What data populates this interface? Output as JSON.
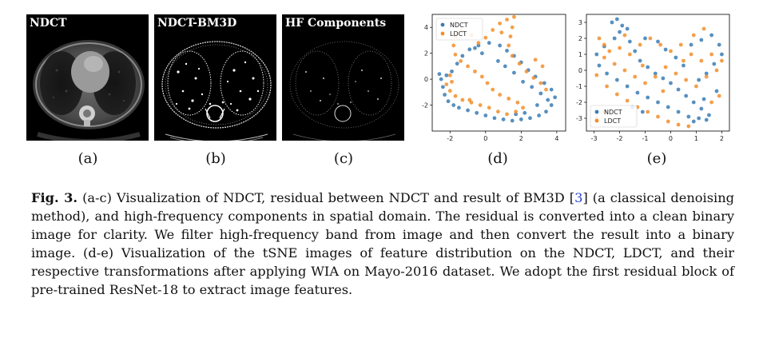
{
  "panels": [
    {
      "title": "NDCT",
      "label": "(a)"
    },
    {
      "title": "NDCT-BM3D",
      "label": "(b)"
    },
    {
      "title": "HF Components",
      "label": "(c)"
    }
  ],
  "plot_labels": [
    "(d)",
    "(e)"
  ],
  "colors": {
    "ndct": "#3a7db5",
    "ldct": "#f28e2b"
  },
  "chart_data": [
    {
      "type": "scatter",
      "title": "",
      "legend": [
        "NDCT",
        "LDCT"
      ],
      "legend_position": "top-left",
      "xlim": [
        -3,
        4.5
      ],
      "ylim": [
        -4,
        5
      ],
      "x_ticks": [
        -2,
        0,
        2,
        4
      ],
      "y_ticks": [
        -2,
        0,
        2,
        4
      ],
      "series": [
        {
          "name": "NDCT",
          "points": [
            [
              -2.6,
              0.4
            ],
            [
              -2.5,
              0.0
            ],
            [
              -2.4,
              -0.6
            ],
            [
              -2.3,
              -1.2
            ],
            [
              -2.1,
              -1.7
            ],
            [
              -1.8,
              -2.0
            ],
            [
              -1.5,
              -2.2
            ],
            [
              -1.0,
              -2.4
            ],
            [
              -0.5,
              -2.6
            ],
            [
              0.0,
              -2.8
            ],
            [
              0.5,
              -3.0
            ],
            [
              1.0,
              -3.1
            ],
            [
              1.5,
              -3.2
            ],
            [
              2.0,
              -3.1
            ],
            [
              2.5,
              -3.0
            ],
            [
              3.0,
              -2.8
            ],
            [
              3.4,
              -2.5
            ],
            [
              3.7,
              -2.0
            ],
            [
              3.9,
              -1.4
            ],
            [
              3.7,
              -0.8
            ],
            [
              3.3,
              -0.3
            ],
            [
              2.8,
              0.2
            ],
            [
              2.4,
              0.7
            ],
            [
              2.0,
              1.3
            ],
            [
              1.6,
              1.8
            ],
            [
              1.2,
              2.2
            ],
            [
              0.8,
              2.6
            ],
            [
              0.2,
              2.8
            ],
            [
              -0.4,
              2.6
            ],
            [
              -0.9,
              2.3
            ],
            [
              -1.3,
              1.8
            ],
            [
              -1.6,
              1.2
            ],
            [
              -1.9,
              0.6
            ],
            [
              -2.2,
              0.3
            ],
            [
              2.1,
              -0.2
            ],
            [
              2.6,
              -0.6
            ],
            [
              3.1,
              -1.1
            ],
            [
              3.5,
              -1.6
            ],
            [
              1.6,
              0.5
            ],
            [
              1.1,
              1.0
            ],
            [
              0.7,
              1.4
            ],
            [
              -0.2,
              2.0
            ],
            [
              -0.6,
              2.4
            ],
            [
              2.9,
              -2.0
            ],
            [
              2.2,
              -2.6
            ],
            [
              1.7,
              -2.7
            ]
          ]
        },
        {
          "name": "LDCT",
          "points": [
            [
              -2.2,
              -0.4
            ],
            [
              -2.0,
              -0.9
            ],
            [
              -1.7,
              -1.3
            ],
            [
              -1.3,
              -1.6
            ],
            [
              -0.8,
              -1.8
            ],
            [
              -0.3,
              -2.0
            ],
            [
              0.2,
              -2.2
            ],
            [
              0.7,
              -2.5
            ],
            [
              1.2,
              -2.7
            ],
            [
              1.7,
              -2.5
            ],
            [
              2.1,
              -2.2
            ],
            [
              1.8,
              -1.8
            ],
            [
              1.3,
              -1.5
            ],
            [
              0.8,
              -1.2
            ],
            [
              0.4,
              -0.8
            ],
            [
              0.1,
              -0.3
            ],
            [
              -0.2,
              0.2
            ],
            [
              -0.6,
              0.6
            ],
            [
              -1.0,
              1.0
            ],
            [
              -1.4,
              1.4
            ],
            [
              -1.7,
              1.9
            ],
            [
              -1.8,
              2.6
            ],
            [
              -1.7,
              3.3
            ],
            [
              -1.3,
              3.7
            ],
            [
              -0.8,
              3.4
            ],
            [
              -0.4,
              2.8
            ],
            [
              0.0,
              3.2
            ],
            [
              0.4,
              3.8
            ],
            [
              0.8,
              4.3
            ],
            [
              1.2,
              4.6
            ],
            [
              1.5,
              4.0
            ],
            [
              1.4,
              3.3
            ],
            [
              1.3,
              2.6
            ],
            [
              1.5,
              1.8
            ],
            [
              1.9,
              1.2
            ],
            [
              2.3,
              0.6
            ],
            [
              2.7,
              0.1
            ],
            [
              3.1,
              -0.3
            ],
            [
              3.4,
              -0.8
            ],
            [
              3.2,
              1.0
            ],
            [
              2.8,
              1.5
            ],
            [
              1.6,
              4.8
            ],
            [
              0.9,
              3.6
            ],
            [
              -1.9,
              -0.2
            ],
            [
              -2.0,
              0.3
            ],
            [
              -0.9,
              -1.6
            ]
          ]
        }
      ]
    },
    {
      "type": "scatter",
      "title": "",
      "legend": [
        "NDCT",
        "LDCT"
      ],
      "legend_position": "bottom-left",
      "xlim": [
        -3.3,
        2.3
      ],
      "ylim": [
        -3.8,
        3.5
      ],
      "x_ticks": [
        -3,
        -2,
        -1,
        0,
        1,
        2
      ],
      "y_ticks": [
        -3,
        -2,
        -1,
        0,
        1,
        2,
        3
      ],
      "series": [
        {
          "name": "NDCT",
          "points": [
            [
              -2.3,
              3.0
            ],
            [
              -2.1,
              3.2
            ],
            [
              -1.9,
              2.8
            ],
            [
              -2.0,
              2.4
            ],
            [
              -2.2,
              2.0
            ],
            [
              -1.7,
              2.6
            ],
            [
              -1.6,
              1.8
            ],
            [
              -1.4,
              1.2
            ],
            [
              -1.2,
              0.6
            ],
            [
              -0.9,
              0.2
            ],
            [
              -0.6,
              -0.2
            ],
            [
              -0.3,
              -0.5
            ],
            [
              0.0,
              -0.8
            ],
            [
              0.3,
              -1.2
            ],
            [
              0.6,
              -1.6
            ],
            [
              0.9,
              -2.0
            ],
            [
              1.2,
              -2.4
            ],
            [
              1.5,
              -2.8
            ],
            [
              1.1,
              -3.0
            ],
            [
              0.7,
              -2.9
            ],
            [
              0.3,
              -2.6
            ],
            [
              -0.1,
              -2.3
            ],
            [
              -0.5,
              -2.0
            ],
            [
              -0.9,
              -1.7
            ],
            [
              -1.3,
              -1.4
            ],
            [
              -1.7,
              -1.0
            ],
            [
              -2.1,
              -0.6
            ],
            [
              -2.5,
              -0.2
            ],
            [
              -2.8,
              0.3
            ],
            [
              -2.9,
              1.0
            ],
            [
              -2.6,
              1.5
            ],
            [
              0.8,
              1.6
            ],
            [
              1.2,
              1.9
            ],
            [
              1.6,
              2.2
            ],
            [
              1.9,
              1.6
            ],
            [
              2.0,
              1.0
            ],
            [
              1.7,
              0.4
            ],
            [
              1.4,
              -0.2
            ],
            [
              1.1,
              -0.6
            ],
            [
              0.5,
              0.3
            ],
            [
              0.2,
              0.8
            ],
            [
              -0.2,
              1.3
            ],
            [
              -0.5,
              1.8
            ],
            [
              -1.0,
              2.0
            ],
            [
              1.8,
              -1.3
            ],
            [
              1.3,
              -1.8
            ],
            [
              -1.5,
              -2.3
            ],
            [
              -1.1,
              -2.6
            ],
            [
              0.9,
              -3.2
            ],
            [
              1.4,
              -3.1
            ]
          ]
        },
        {
          "name": "LDCT",
          "points": [
            [
              -2.8,
              2.0
            ],
            [
              -2.6,
              1.6
            ],
            [
              -2.4,
              1.2
            ],
            [
              -2.0,
              1.4
            ],
            [
              -1.6,
              1.0
            ],
            [
              -1.2,
              1.6
            ],
            [
              -0.8,
              2.0
            ],
            [
              -0.4,
              1.6
            ],
            [
              0.0,
              1.2
            ],
            [
              0.4,
              1.6
            ],
            [
              0.8,
              1.0
            ],
            [
              1.2,
              0.6
            ],
            [
              1.6,
              1.0
            ],
            [
              2.0,
              0.6
            ],
            [
              1.8,
              0.0
            ],
            [
              1.4,
              -0.4
            ],
            [
              1.0,
              -1.0
            ],
            [
              0.6,
              -0.6
            ],
            [
              0.2,
              -0.2
            ],
            [
              -0.2,
              0.2
            ],
            [
              -0.6,
              -0.4
            ],
            [
              -1.0,
              -0.8
            ],
            [
              -1.4,
              -0.4
            ],
            [
              -1.8,
              0.0
            ],
            [
              -2.2,
              0.4
            ],
            [
              -2.6,
              0.8
            ],
            [
              -2.9,
              -0.3
            ],
            [
              -2.5,
              -1.0
            ],
            [
              -2.1,
              -1.5
            ],
            [
              -1.7,
              -1.9
            ],
            [
              -1.3,
              -2.3
            ],
            [
              -0.9,
              -2.6
            ],
            [
              -0.5,
              -2.9
            ],
            [
              -0.1,
              -3.2
            ],
            [
              0.3,
              -3.4
            ],
            [
              0.7,
              -3.5
            ],
            [
              -2.6,
              -2.6
            ],
            [
              -2.9,
              -3.0
            ],
            [
              1.6,
              -2.0
            ],
            [
              1.9,
              -1.6
            ],
            [
              0.9,
              2.2
            ],
            [
              1.3,
              2.6
            ],
            [
              -1.8,
              2.2
            ],
            [
              -0.3,
              -1.3
            ],
            [
              0.5,
              0.6
            ],
            [
              -1.1,
              0.3
            ]
          ]
        }
      ]
    }
  ],
  "caption": {
    "fig_label": "Fig. 3.",
    "text_1": " (a-c) Visualization of NDCT, residual between NDCT and result of BM3D [",
    "cite": "3",
    "text_2": "] (a classical denoising method), and high-frequency components in spatial domain. The residual is converted into a clean binary image for clarity. We filter high-frequency band from image and then convert the result into a binary image. (d-e) Visualization of the tSNE images of feature distribution on the NDCT, LDCT, and their respective transformations after applying WIA on Mayo-2016 dataset. We adopt the first residual block of pre-trained ResNet-18 to extract image features."
  }
}
